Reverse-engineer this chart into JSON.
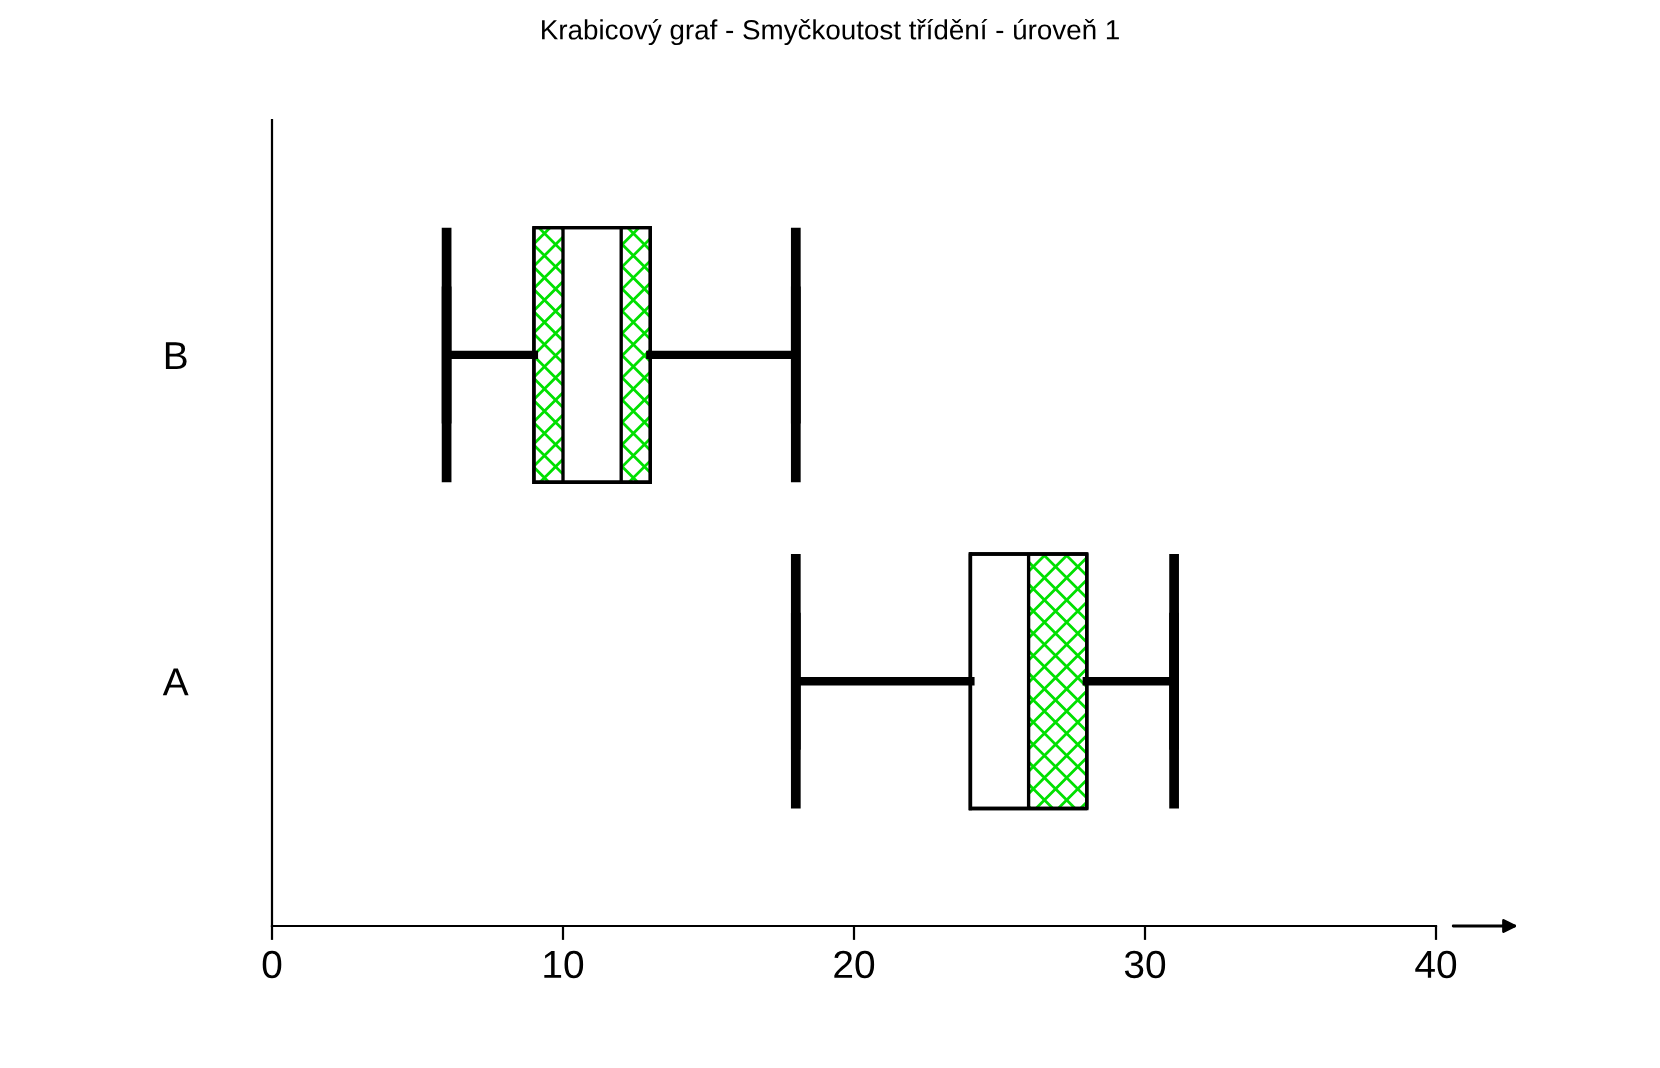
{
  "chart_data": {
    "type": "box",
    "orientation": "horizontal",
    "title": "Krabicový graf - Smyčkoutost třídění - úroveň 1",
    "categories": [
      "B",
      "A"
    ],
    "boxes": [
      {
        "low": 6,
        "q1": 9,
        "median": 10,
        "q3": 13,
        "high": 18,
        "mean": 12
      },
      {
        "low": 18,
        "q1": 24,
        "median": 26,
        "q3": 28,
        "high": 31,
        "mean": 24
      }
    ],
    "color": "#00e000",
    "xlim": [
      0,
      40
    ],
    "xticks": [
      0,
      10,
      20,
      30,
      40
    ],
    "grid": false
  }
}
